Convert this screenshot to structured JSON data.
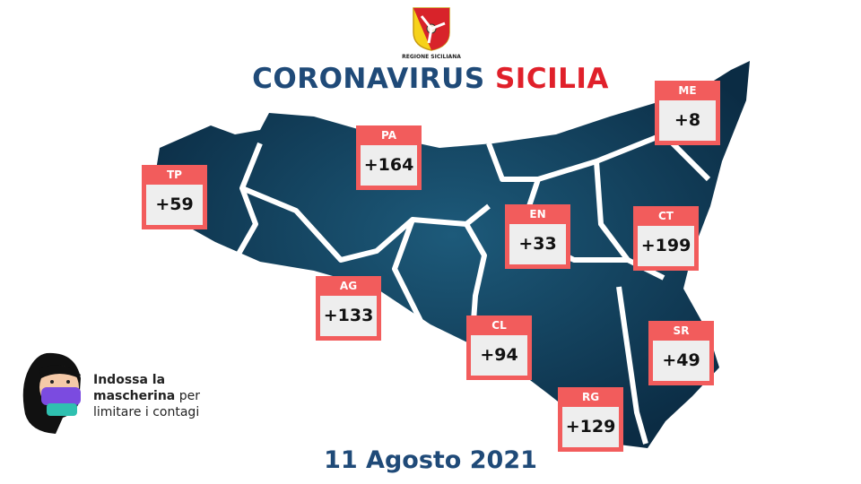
{
  "header": {
    "logo_caption": "REGIONE SICILIANA",
    "title_part1": "CORONAVIRUS",
    "title_part2": "SICILIA"
  },
  "colors": {
    "title_blue": "#1f4a78",
    "title_red": "#e0202a",
    "box_red": "#f25c5c",
    "map_navy": "#0e3a55"
  },
  "provinces": [
    {
      "code": "TP",
      "value": "+59"
    },
    {
      "code": "PA",
      "value": "+164"
    },
    {
      "code": "ME",
      "value": "+8"
    },
    {
      "code": "EN",
      "value": "+33"
    },
    {
      "code": "CT",
      "value": "+199"
    },
    {
      "code": "AG",
      "value": "+133"
    },
    {
      "code": "CL",
      "value": "+94"
    },
    {
      "code": "SR",
      "value": "+49"
    },
    {
      "code": "RG",
      "value": "+129"
    }
  ],
  "mask_message": {
    "bold": "Indossa la",
    "bold2": "mascherina",
    "rest1": "per",
    "rest2": "limitare i contagi"
  },
  "date": "11 Agosto 2021"
}
